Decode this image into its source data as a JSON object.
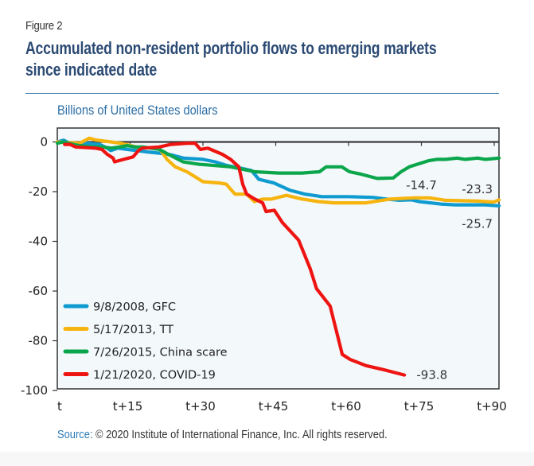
{
  "figure_label": "Figure 2",
  "title": "Accumulated non-resident portfolio flows to emerging markets since indicated date",
  "units": "Billions of United States dollars",
  "source": {
    "label": "Source:",
    "text": " © 2020 Institute of International Finance, Inc. All rights reserved."
  },
  "chart_data": {
    "type": "line",
    "title": "Accumulated non-resident portfolio flows to emerging markets since indicated date",
    "xlabel": "",
    "ylabel": "Billions of United States dollars",
    "xlim": [
      0,
      91
    ],
    "ylim": [
      -100,
      0
    ],
    "grid": false,
    "x_ticks": [
      {
        "value": 0,
        "label": "t"
      },
      {
        "value": 15,
        "label": "t+15"
      },
      {
        "value": 30,
        "label": "t+30"
      },
      {
        "value": 45,
        "label": "t+45"
      },
      {
        "value": 60,
        "label": "t+60"
      },
      {
        "value": 75,
        "label": "t+75"
      },
      {
        "value": 90,
        "label": "t+90"
      }
    ],
    "y_ticks": [
      {
        "value": 0,
        "label": "0"
      },
      {
        "value": -20,
        "label": "-20"
      },
      {
        "value": -40,
        "label": "-40"
      },
      {
        "value": -60,
        "label": "-60"
      },
      {
        "value": -80,
        "label": "-80"
      },
      {
        "value": -100,
        "label": "-100"
      }
    ],
    "legend_position": "bottom-left",
    "series": [
      {
        "name": "9/8/2008, GFC",
        "color": "#0f9bd0",
        "end_label": "-25.7",
        "end_label_color": "#333333",
        "points": [
          [
            0,
            0
          ],
          [
            1.3,
            0.7
          ],
          [
            2.6,
            -0.5
          ],
          [
            6,
            -0.5
          ],
          [
            8.7,
            -1
          ],
          [
            10.3,
            -2.5
          ],
          [
            11,
            -3.5
          ],
          [
            12.5,
            -2.5
          ],
          [
            14.4,
            -3
          ],
          [
            16,
            -3.4
          ],
          [
            18.5,
            -4
          ],
          [
            21,
            -4.5
          ],
          [
            23.5,
            -5.2
          ],
          [
            26,
            -6.5
          ],
          [
            30,
            -7
          ],
          [
            32.5,
            -8
          ],
          [
            35,
            -9.5
          ],
          [
            37,
            -10.2
          ],
          [
            40,
            -11.5
          ],
          [
            41.5,
            -15
          ],
          [
            44.6,
            -16.5
          ],
          [
            48,
            -19.5
          ],
          [
            51,
            -21
          ],
          [
            54.5,
            -22
          ],
          [
            60,
            -22
          ],
          [
            65,
            -22.3
          ],
          [
            68,
            -23
          ],
          [
            70.5,
            -23.5
          ],
          [
            73,
            -23.3
          ],
          [
            74.5,
            -24
          ],
          [
            79,
            -25
          ],
          [
            82,
            -25.3
          ],
          [
            88,
            -25.3
          ],
          [
            91,
            -25.7
          ]
        ]
      },
      {
        "name": "5/17/2013, TT",
        "color": "#f6b40e",
        "end_label": "-23.3",
        "end_label_color": "#333333",
        "points": [
          [
            0,
            0
          ],
          [
            4.6,
            -0.5
          ],
          [
            6.6,
            1.5
          ],
          [
            7.9,
            0.8
          ],
          [
            11.1,
            0
          ],
          [
            13,
            -0.5
          ],
          [
            16.7,
            -2.2
          ],
          [
            21,
            -2.5
          ],
          [
            22.6,
            -7
          ],
          [
            24.3,
            -10
          ],
          [
            26.7,
            -12
          ],
          [
            28.4,
            -14
          ],
          [
            30,
            -16
          ],
          [
            33.4,
            -16.5
          ],
          [
            34.8,
            -17
          ],
          [
            36.6,
            -21
          ],
          [
            39,
            -21
          ],
          [
            40.6,
            -24
          ],
          [
            42.3,
            -23
          ],
          [
            44,
            -23
          ],
          [
            47.2,
            -21.5
          ],
          [
            50.5,
            -23
          ],
          [
            53.8,
            -24
          ],
          [
            57,
            -24.5
          ],
          [
            63.6,
            -24.5
          ],
          [
            68.5,
            -23
          ],
          [
            73.4,
            -22.5
          ],
          [
            76.7,
            -22.5
          ],
          [
            80,
            -23.5
          ],
          [
            86.6,
            -23.8
          ],
          [
            89.9,
            -24.2
          ],
          [
            91,
            -23.3
          ]
        ]
      },
      {
        "name": "7/26/2015, China scare",
        "color": "#0ba64c",
        "end_label": "-14.7",
        "end_label_color": "#333333",
        "points": [
          [
            0,
            -0.5
          ],
          [
            1.3,
            0
          ],
          [
            3.8,
            -1.2
          ],
          [
            7,
            -2
          ],
          [
            9.5,
            -2
          ],
          [
            11.1,
            -2.5
          ],
          [
            12.8,
            -2
          ],
          [
            14.4,
            -1.5
          ],
          [
            16,
            -2
          ],
          [
            17.7,
            -2
          ],
          [
            21,
            -3
          ],
          [
            23.4,
            -5.5
          ],
          [
            25.9,
            -8
          ],
          [
            29.2,
            -9
          ],
          [
            30.8,
            -9.2
          ],
          [
            35.7,
            -10
          ],
          [
            40.7,
            -12
          ],
          [
            45.6,
            -12.5
          ],
          [
            50.5,
            -12.5
          ],
          [
            54,
            -12
          ],
          [
            55.4,
            -10
          ],
          [
            58.6,
            -10
          ],
          [
            60.2,
            -12
          ],
          [
            62.6,
            -13
          ],
          [
            65.9,
            -14.7
          ],
          [
            69.2,
            -14.5
          ],
          [
            70.8,
            -12
          ],
          [
            72.5,
            -10
          ],
          [
            74.9,
            -8.5
          ],
          [
            76.6,
            -7.5
          ],
          [
            78.2,
            -7
          ],
          [
            80,
            -7
          ],
          [
            82.4,
            -6.5
          ],
          [
            84,
            -7
          ],
          [
            86.6,
            -6.5
          ],
          [
            88.2,
            -7
          ],
          [
            91,
            -6.5
          ]
        ]
      },
      {
        "name": "1/21/2020, COVID-19",
        "color": "#ee1411",
        "end_label": "-93.8",
        "end_label_color": "#ee1411",
        "points": [
          [
            1.5,
            -1
          ],
          [
            2.6,
            -1
          ],
          [
            3.8,
            -2
          ],
          [
            7.9,
            -2.5
          ],
          [
            9.2,
            -3
          ],
          [
            10.3,
            -5
          ],
          [
            11.5,
            -6.5
          ],
          [
            11.8,
            -8
          ],
          [
            13.3,
            -7.2
          ],
          [
            15.6,
            -6
          ],
          [
            16.7,
            -3.5
          ],
          [
            17.5,
            -2.5
          ],
          [
            21,
            -2
          ],
          [
            23.4,
            -1
          ],
          [
            26.7,
            -0.5
          ],
          [
            28.4,
            -0.5
          ],
          [
            29.5,
            -3
          ],
          [
            31,
            -2.5
          ],
          [
            34,
            -5
          ],
          [
            35.7,
            -7
          ],
          [
            37.4,
            -10
          ],
          [
            38.2,
            -17
          ],
          [
            39,
            -21
          ],
          [
            40.7,
            -23
          ],
          [
            42.3,
            -24.5
          ],
          [
            43,
            -28
          ],
          [
            44.7,
            -27.5
          ],
          [
            46.4,
            -32.5
          ],
          [
            49.7,
            -39.5
          ],
          [
            52.1,
            -51
          ],
          [
            53.4,
            -59
          ],
          [
            56.2,
            -66
          ],
          [
            58.7,
            -85.5
          ],
          [
            60.3,
            -87.5
          ],
          [
            63.6,
            -90
          ],
          [
            66.9,
            -91.5
          ],
          [
            71.5,
            -93.8
          ]
        ]
      }
    ],
    "annotations": [
      {
        "text": "-14.7",
        "series": "7/26/2015, China scare",
        "x": 75,
        "y": -17.5
      },
      {
        "text": "-23.3",
        "series": "5/17/2013, TT",
        "x": 86.5,
        "y": -19
      },
      {
        "text": "-25.7",
        "series": "9/8/2008, GFC",
        "x": 86.5,
        "y": -33
      },
      {
        "text": "-93.8",
        "series": "1/21/2020, COVID-19",
        "x": 74,
        "y": -93.8
      }
    ]
  }
}
